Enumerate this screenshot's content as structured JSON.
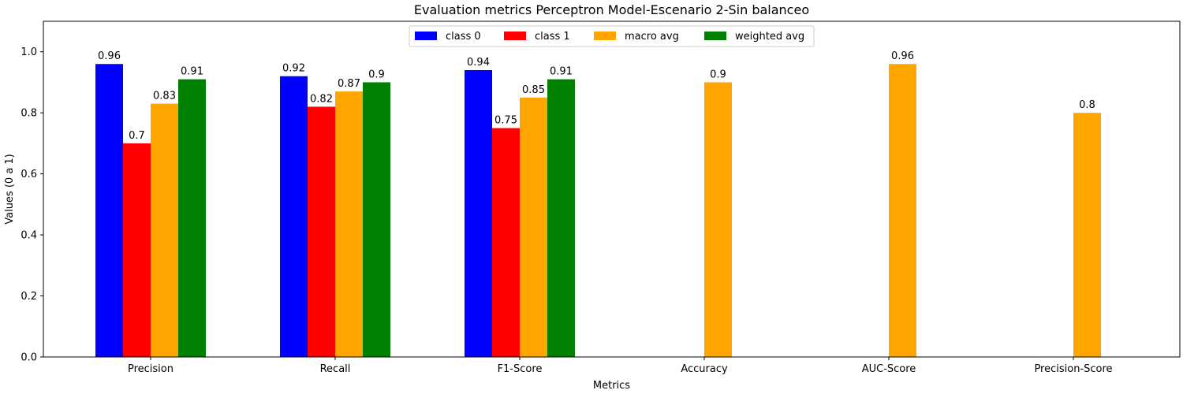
{
  "chart_data": {
    "type": "bar",
    "title": "Evaluation metrics Perceptron Model-Escenario 2-Sin balanceo",
    "xlabel": "Metrics",
    "ylabel": "Values (0 a 1)",
    "ylim": [
      0,
      1.1
    ],
    "yticks": [
      0.0,
      0.2,
      0.4,
      0.6,
      0.8,
      1.0
    ],
    "ytick_labels": [
      "0.0",
      "0.2",
      "0.4",
      "0.6",
      "0.8",
      "1.0"
    ],
    "grid": false,
    "legend_position": "top-center",
    "categories": [
      "Precision",
      "Recall",
      "F1-Score",
      "Accuracy",
      "AUC-Score",
      "Precision-Score"
    ],
    "series": [
      {
        "name": "class 0",
        "color": "#0000ff",
        "values": [
          0.96,
          0.92,
          0.94,
          null,
          null,
          null
        ]
      },
      {
        "name": "class 1",
        "color": "#ff0000",
        "values": [
          0.7,
          0.82,
          0.75,
          null,
          null,
          null
        ]
      },
      {
        "name": "macro avg",
        "color": "#ffa500",
        "values": [
          0.83,
          0.87,
          0.85,
          0.9,
          0.96,
          0.8
        ]
      },
      {
        "name": "weighted avg",
        "color": "#008000",
        "values": [
          0.91,
          0.9,
          0.91,
          null,
          null,
          null
        ]
      }
    ],
    "bar_labels": [
      [
        "0.96",
        "0.92",
        "0.94",
        "",
        "",
        ""
      ],
      [
        "0.7",
        "0.82",
        "0.75",
        "",
        "",
        ""
      ],
      [
        "0.83",
        "0.87",
        "0.85",
        "0.9",
        "0.96",
        "0.8"
      ],
      [
        "0.91",
        "0.9",
        "0.91",
        "",
        "",
        ""
      ]
    ]
  }
}
